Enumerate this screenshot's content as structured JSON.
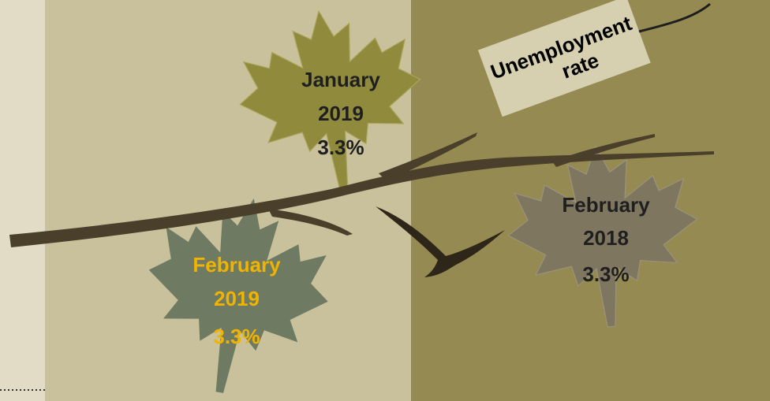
{
  "tag": {
    "lines": [
      "Unemployment",
      "rate"
    ]
  },
  "leaves": [
    {
      "period": "January",
      "year": "2019",
      "value": "3.3%"
    },
    {
      "period": "February",
      "year": "2019",
      "value": "3.3%"
    },
    {
      "period": "February",
      "year": "2018",
      "value": "3.3%"
    }
  ]
}
